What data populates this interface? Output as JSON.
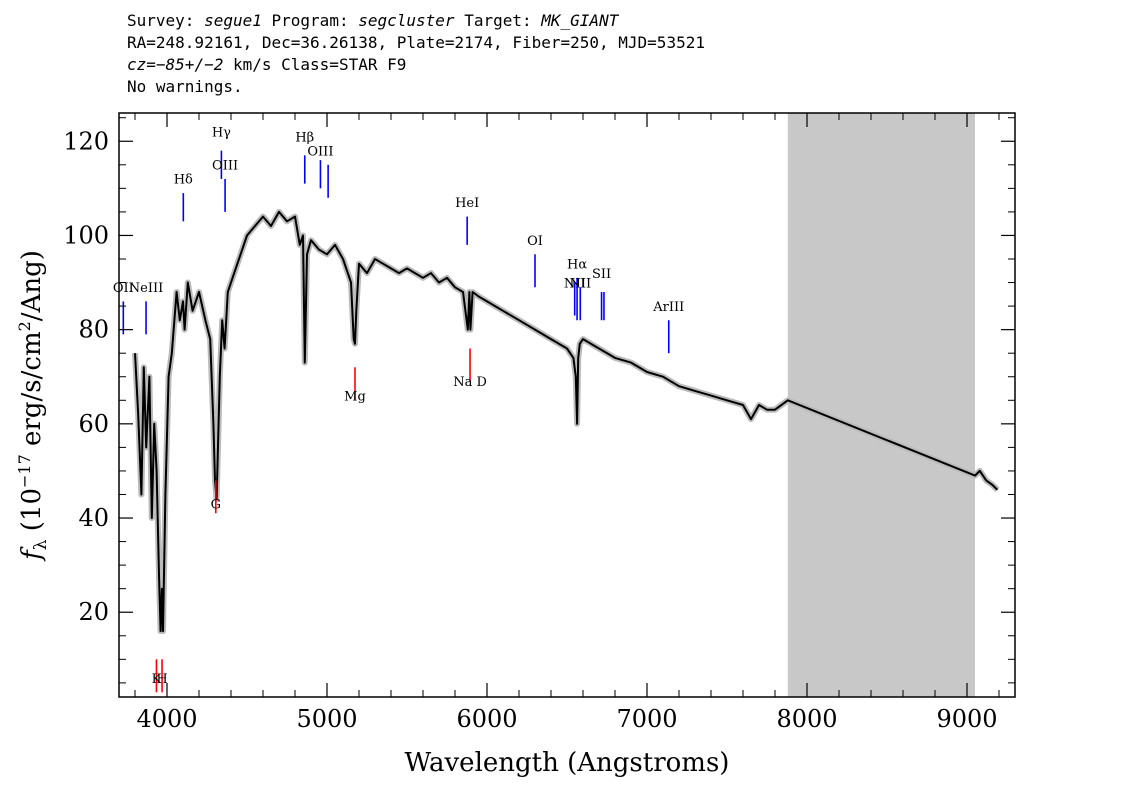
{
  "header": {
    "survey_label": "Survey:",
    "survey": "segue1",
    "program_label": "Program:",
    "program": "segcluster",
    "target_label": "Target:",
    "target": "MK_GIANT",
    "line2": "RA=248.92161, Dec=36.26138, Plate=2174, Fiber=250, MJD=53521",
    "cz_label": "cz=",
    "cz_value": "−85+/−2",
    "cz_rest": " km/s Class=STAR F9",
    "line4": "No warnings."
  },
  "chart_data": {
    "type": "line",
    "xlabel": "Wavelength (Angstroms)",
    "ylabel_prefix": "f",
    "ylabel_sub": "λ",
    "ylabel_unit_1": " (10",
    "ylabel_exp": "−17",
    "ylabel_unit_2": " erg/s/cm",
    "ylabel_exp2": "2",
    "ylabel_unit_3": "/Ang)",
    "xlim": [
      3700,
      9300
    ],
    "ylim": [
      2,
      126
    ],
    "xticks": [
      4000,
      5000,
      6000,
      7000,
      8000,
      9000
    ],
    "xtick_labels": [
      "4000",
      "5000",
      "6000",
      "7000",
      "8000",
      "9000"
    ],
    "yticks": [
      20,
      40,
      60,
      80,
      100,
      120
    ],
    "ytick_labels": [
      "20",
      "40",
      "60",
      "80",
      "100",
      "120"
    ],
    "masked_region": [
      7880,
      9050
    ],
    "grid": false,
    "spectrum": {
      "x": [
        3800,
        3820,
        3840,
        3855,
        3870,
        3890,
        3905,
        3920,
        3935,
        3950,
        3960,
        3968,
        3975,
        3990,
        4010,
        4030,
        4060,
        4080,
        4100,
        4110,
        4130,
        4160,
        4200,
        4240,
        4270,
        4290,
        4300,
        4310,
        4330,
        4345,
        4360,
        4380,
        4420,
        4460,
        4500,
        4550,
        4600,
        4650,
        4700,
        4750,
        4800,
        4830,
        4850,
        4861,
        4875,
        4900,
        4950,
        5000,
        5050,
        5100,
        5150,
        5167,
        5175,
        5183,
        5200,
        5250,
        5300,
        5350,
        5400,
        5450,
        5500,
        5550,
        5600,
        5650,
        5700,
        5750,
        5800,
        5850,
        5880,
        5890,
        5896,
        5910,
        5950,
        6000,
        6100,
        6200,
        6300,
        6400,
        6500,
        6540,
        6555,
        6563,
        6570,
        6580,
        6600,
        6700,
        6800,
        6900,
        7000,
        7100,
        7200,
        7300,
        7400,
        7500,
        7600,
        7650,
        7700,
        7750,
        7800,
        7880,
        9050,
        9080,
        9120,
        9160,
        9190
      ],
      "y": [
        75,
        62,
        45,
        72,
        55,
        70,
        40,
        60,
        50,
        28,
        16,
        25,
        16,
        45,
        70,
        75,
        88,
        82,
        86,
        80,
        90,
        84,
        88,
        82,
        78,
        60,
        48,
        44,
        70,
        82,
        76,
        88,
        92,
        96,
        100,
        102,
        104,
        102,
        105,
        103,
        104,
        98,
        100,
        73,
        96,
        99,
        97,
        96,
        98,
        95,
        90,
        78,
        77,
        84,
        94,
        92,
        95,
        94,
        93,
        92,
        93,
        92,
        91,
        92,
        90,
        91,
        89,
        88,
        80,
        88,
        80,
        88,
        87,
        86,
        84,
        82,
        80,
        78,
        76,
        74,
        70,
        60,
        74,
        77,
        78,
        76,
        74,
        73,
        71,
        70,
        68,
        67,
        66,
        65,
        64,
        61,
        64,
        63,
        63,
        65,
        49,
        50,
        48,
        47,
        46
      ]
    },
    "line_markers": [
      {
        "label": "OII",
        "x": 3727,
        "y_top": 86,
        "y_bot": 79,
        "label_y": 88,
        "color": "#0000ff"
      },
      {
        "label": "NeIII",
        "x": 3869,
        "y_top": 86,
        "y_bot": 79,
        "label_y": 88,
        "color": "#0000ff"
      },
      {
        "label": "Hδ",
        "x": 4102,
        "y_top": 109,
        "y_bot": 103,
        "label_y": 111,
        "color": "#0000ff"
      },
      {
        "label": "Hγ",
        "x": 4340,
        "y_top": 118,
        "y_bot": 112,
        "label_y": 121,
        "color": "#0000ff"
      },
      {
        "label": "OIII",
        "x": 4363,
        "y_top": 112,
        "y_bot": 105,
        "label_y": 114,
        "color": "#0000ff"
      },
      {
        "label": "Hβ",
        "x": 4861,
        "y_top": 117,
        "y_bot": 111,
        "label_y": 120,
        "color": "#0000ff"
      },
      {
        "label": "OIII",
        "x": 4959,
        "y_top": 116,
        "y_bot": 110,
        "label_y": 117,
        "color": "#0000ff"
      },
      {
        "label": "",
        "x": 5007,
        "y_top": 115,
        "y_bot": 108,
        "label_y": 117,
        "color": "#0000ff"
      },
      {
        "label": "HeI",
        "x": 5876,
        "y_top": 104,
        "y_bot": 98,
        "label_y": 106,
        "color": "#0000ff"
      },
      {
        "label": "OI",
        "x": 6300,
        "y_top": 96,
        "y_bot": 89,
        "label_y": 98,
        "color": "#0000ff"
      },
      {
        "label": "NII",
        "x": 6548,
        "y_top": 90,
        "y_bot": 83,
        "label_y": 89,
        "color": "#0000ff"
      },
      {
        "label": "Hα",
        "x": 6563,
        "y_top": 91,
        "y_bot": 82,
        "label_y": 93,
        "color": "#0000ff"
      },
      {
        "label": "NII",
        "x": 6583,
        "y_top": 89,
        "y_bot": 82,
        "label_y": 89,
        "color": "#0000ff"
      },
      {
        "label": "SII",
        "x": 6716,
        "y_top": 88,
        "y_bot": 82,
        "label_y": 91,
        "color": "#0000ff"
      },
      {
        "label": "",
        "x": 6731,
        "y_top": 88,
        "y_bot": 82,
        "label_y": 91,
        "color": "#0000ff"
      },
      {
        "label": "ArIII",
        "x": 7136,
        "y_top": 82,
        "y_bot": 75,
        "label_y": 84,
        "color": "#0000ff"
      },
      {
        "label": "K",
        "x": 3934,
        "y_top": 10,
        "y_bot": 3,
        "label_y": 5,
        "color": "#ff0000"
      },
      {
        "label": "H",
        "x": 3969,
        "y_top": 10,
        "y_bot": 3,
        "label_y": 5,
        "color": "#ff0000"
      },
      {
        "label": "G",
        "x": 4305,
        "y_top": 48,
        "y_bot": 41,
        "label_y": 42,
        "color": "#ff0000"
      },
      {
        "label": "Mg",
        "x": 5175,
        "y_top": 72,
        "y_bot": 65,
        "label_y": 65,
        "color": "#ff0000"
      },
      {
        "label": "Na D",
        "x": 5894,
        "y_top": 76,
        "y_bot": 69,
        "label_y": 68,
        "color": "#ff0000"
      }
    ]
  }
}
